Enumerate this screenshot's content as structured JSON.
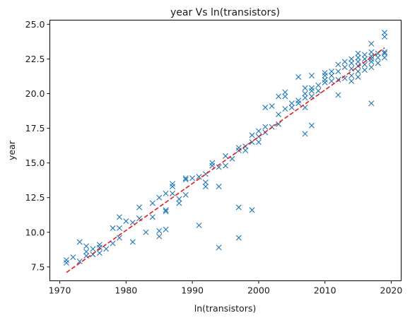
{
  "chart_data": {
    "type": "scatter",
    "title": "year Vs ln(transistors)",
    "xlabel": "ln(transistors)",
    "ylabel": "year",
    "xlim": [
      1968.5,
      2021.5
    ],
    "ylim": [
      6.5,
      25.3
    ],
    "x_ticks": [
      1970,
      1980,
      1990,
      2000,
      2010,
      2020
    ],
    "y_ticks": [
      7.5,
      10.0,
      12.5,
      15.0,
      17.5,
      20.0,
      22.5,
      25.0
    ],
    "y_tick_labels": [
      "7.5",
      "10.0",
      "12.5",
      "15.0",
      "17.5",
      "20.0",
      "22.5",
      "25.0"
    ],
    "grid": false,
    "series": [
      {
        "marker": "x",
        "color": "#1f77b4",
        "points": [
          [
            1971,
            7.8
          ],
          [
            1971,
            8.0
          ],
          [
            1972,
            8.2
          ],
          [
            1973,
            7.9
          ],
          [
            1973,
            9.3
          ],
          [
            1974,
            8.3
          ],
          [
            1974,
            8.6
          ],
          [
            1974,
            9.0
          ],
          [
            1975,
            8.4
          ],
          [
            1975,
            8.8
          ],
          [
            1976,
            8.5
          ],
          [
            1976,
            8.9
          ],
          [
            1976,
            9.1
          ],
          [
            1977,
            8.8
          ],
          [
            1978,
            9.2
          ],
          [
            1978,
            10.3
          ],
          [
            1979,
            9.6
          ],
          [
            1979,
            10.3
          ],
          [
            1979,
            11.1
          ],
          [
            1980,
            10.8
          ],
          [
            1981,
            9.3
          ],
          [
            1981,
            10.7
          ],
          [
            1982,
            11.0
          ],
          [
            1982,
            11.8
          ],
          [
            1983,
            10.0
          ],
          [
            1984,
            11.1
          ],
          [
            1984,
            12.1
          ],
          [
            1985,
            9.7
          ],
          [
            1985,
            10.1
          ],
          [
            1985,
            12.5
          ],
          [
            1986,
            10.2
          ],
          [
            1986,
            11.5
          ],
          [
            1986,
            11.6
          ],
          [
            1986,
            12.8
          ],
          [
            1987,
            12.8
          ],
          [
            1987,
            13.3
          ],
          [
            1987,
            13.5
          ],
          [
            1988,
            12.1
          ],
          [
            1988,
            12.4
          ],
          [
            1989,
            12.7
          ],
          [
            1989,
            13.8
          ],
          [
            1989,
            13.9
          ],
          [
            1990,
            13.9
          ],
          [
            1991,
            10.5
          ],
          [
            1991,
            14.0
          ],
          [
            1992,
            13.3
          ],
          [
            1992,
            13.6
          ],
          [
            1992,
            14.2
          ],
          [
            1993,
            14.8
          ],
          [
            1993,
            15.0
          ],
          [
            1994,
            8.9
          ],
          [
            1994,
            13.3
          ],
          [
            1994,
            14.7
          ],
          [
            1995,
            14.8
          ],
          [
            1995,
            15.5
          ],
          [
            1996,
            15.3
          ],
          [
            1997,
            9.6
          ],
          [
            1997,
            11.8
          ],
          [
            1997,
            15.9
          ],
          [
            1997,
            16.1
          ],
          [
            1998,
            15.9
          ],
          [
            1998,
            16.2
          ],
          [
            1999,
            11.6
          ],
          [
            1999,
            16.5
          ],
          [
            1999,
            17.0
          ],
          [
            2000,
            16.5
          ],
          [
            2000,
            16.9
          ],
          [
            2000,
            17.3
          ],
          [
            2001,
            17.2
          ],
          [
            2001,
            17.6
          ],
          [
            2001,
            19.0
          ],
          [
            2002,
            17.6
          ],
          [
            2002,
            19.1
          ],
          [
            2003,
            17.8
          ],
          [
            2003,
            18.5
          ],
          [
            2003,
            19.8
          ],
          [
            2004,
            18.9
          ],
          [
            2004,
            19.8
          ],
          [
            2004,
            20.1
          ],
          [
            2005,
            19.0
          ],
          [
            2005,
            19.3
          ],
          [
            2006,
            19.3
          ],
          [
            2006,
            19.5
          ],
          [
            2006,
            21.2
          ],
          [
            2007,
            17.1
          ],
          [
            2007,
            19.0
          ],
          [
            2007,
            19.7
          ],
          [
            2007,
            20.0
          ],
          [
            2007,
            20.4
          ],
          [
            2008,
            17.7
          ],
          [
            2008,
            19.8
          ],
          [
            2008,
            20.2
          ],
          [
            2008,
            20.4
          ],
          [
            2008,
            21.3
          ],
          [
            2009,
            20.2
          ],
          [
            2009,
            20.6
          ],
          [
            2010,
            20.8
          ],
          [
            2010,
            21.0
          ],
          [
            2010,
            21.3
          ],
          [
            2010,
            21.5
          ],
          [
            2011,
            20.9
          ],
          [
            2011,
            21.3
          ],
          [
            2011,
            21.6
          ],
          [
            2012,
            19.9
          ],
          [
            2012,
            21.0
          ],
          [
            2012,
            21.6
          ],
          [
            2012,
            22.1
          ],
          [
            2013,
            21.1
          ],
          [
            2013,
            21.9
          ],
          [
            2013,
            22.3
          ],
          [
            2014,
            20.9
          ],
          [
            2014,
            21.3
          ],
          [
            2014,
            21.8
          ],
          [
            2014,
            22.2
          ],
          [
            2014,
            22.5
          ],
          [
            2015,
            21.2
          ],
          [
            2015,
            21.6
          ],
          [
            2015,
            22.0
          ],
          [
            2015,
            22.3
          ],
          [
            2015,
            22.6
          ],
          [
            2015,
            22.9
          ],
          [
            2016,
            21.7
          ],
          [
            2016,
            22.1
          ],
          [
            2016,
            22.5
          ],
          [
            2016,
            22.8
          ],
          [
            2017,
            19.3
          ],
          [
            2017,
            21.9
          ],
          [
            2017,
            22.3
          ],
          [
            2017,
            22.5
          ],
          [
            2017,
            22.7
          ],
          [
            2017,
            23.0
          ],
          [
            2017,
            23.6
          ],
          [
            2018,
            22.2
          ],
          [
            2018,
            22.6
          ],
          [
            2018,
            22.9
          ],
          [
            2019,
            22.6
          ],
          [
            2019,
            22.9
          ],
          [
            2019,
            23.0
          ],
          [
            2019,
            24.1
          ],
          [
            2019,
            24.4
          ]
        ]
      },
      {
        "type": "line",
        "style": "dashed",
        "color": "#e41a1c",
        "points": [
          [
            1971,
            7.1
          ],
          [
            2019,
            23.3
          ]
        ]
      }
    ]
  }
}
